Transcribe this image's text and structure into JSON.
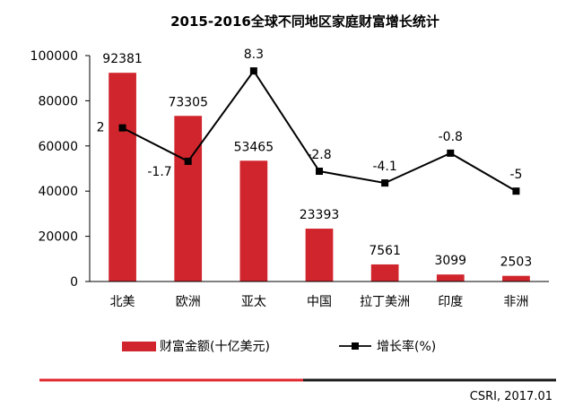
{
  "chart_data": {
    "type": "bar",
    "title": "2015-2016全球不同地区家庭财富增长统计",
    "categories": [
      "北美",
      "欧洲",
      "亚太",
      "中国",
      "拉丁美洲",
      "印度",
      "非洲"
    ],
    "series": [
      {
        "name": "财富金额(十亿美元)",
        "type": "bar",
        "axis": "left",
        "color": "#d0252c",
        "values": [
          92381,
          73305,
          53465,
          23393,
          7561,
          3099,
          2503
        ],
        "labels": [
          "92381",
          "73305",
          "53465",
          "23393",
          "7561",
          "3099",
          "2503"
        ]
      },
      {
        "name": "增长率(%)",
        "type": "line",
        "axis": "right-hidden",
        "color": "#000000",
        "values": [
          2,
          -1.7,
          8.3,
          -2.8,
          -4.1,
          -0.8,
          -5
        ],
        "labels": [
          "2",
          "-1.7",
          "8.3",
          "-2.8",
          "-4.1",
          "-0.8",
          "-5"
        ]
      }
    ],
    "y_left": {
      "range": [
        0,
        100000
      ],
      "ticks": [
        "0",
        "20000",
        "40000",
        "60000",
        "80000",
        "100000"
      ]
    },
    "y_right_range": [
      -15,
      10
    ],
    "grid": false,
    "legend_position": "bottom"
  },
  "source": "CSRI, 2017.01",
  "colors": {
    "bar": "#d0252c",
    "line": "#000000",
    "divider_red": "#e0262c",
    "divider_dark": "#1a1a1a"
  }
}
